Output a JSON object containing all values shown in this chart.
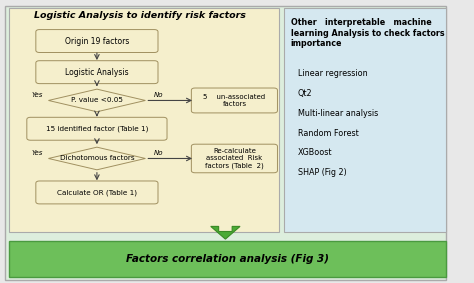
{
  "title": "Logistic Analysis to identify risk factors",
  "right_title": "Other   interpretable   machine\nlearning Analysis to check factors\nimportance",
  "right_items": [
    "Linear regression",
    "Qt2",
    "Multi-linear analysis",
    "Random Forest",
    "XGBoost",
    "SHAP (Fig 2)"
  ],
  "bottom_label": "Factors correlation analysis (Fig 3)",
  "bg_outer": "#e8e8e8",
  "bg_left": "#f5efcc",
  "bg_right": "#d5e8f0",
  "bg_wrap": "#ddeedd",
  "bg_bottom": "#6dbf5a",
  "box_fill": "#f5efcc",
  "box_edge": "#a09060",
  "arrow_color": "#444444",
  "green_arrow_fill": "#4aaa35",
  "green_arrow_edge": "#3a8a25",
  "bottom_text_color": "#111111",
  "figsize": [
    4.74,
    2.83
  ],
  "dpi": 100
}
